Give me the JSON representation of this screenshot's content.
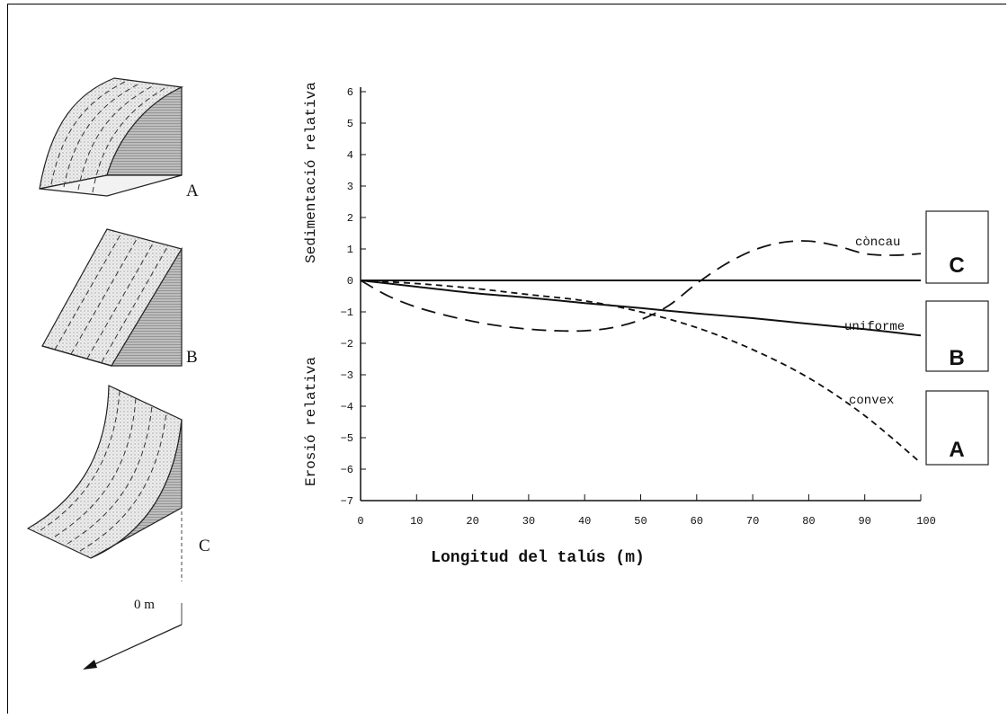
{
  "slopes": {
    "a_label": "A",
    "b_label": "B",
    "c_label": "C",
    "distance_label": "0 m"
  },
  "chart_data": {
    "type": "line",
    "xlabel": "Longitud del talús (m)",
    "ylabel_top": "Sedimentació relativa",
    "ylabel_bottom": "Erosió relativa",
    "xlim": [
      0,
      100
    ],
    "ylim": [
      -7,
      6
    ],
    "xticks": [
      0,
      10,
      20,
      30,
      40,
      50,
      60,
      70,
      80,
      90,
      100
    ],
    "yticks": [
      6,
      5,
      4,
      3,
      2,
      1,
      0,
      -1,
      -2,
      -3,
      -4,
      -5,
      -6,
      -7
    ],
    "zero_line": true,
    "series": [
      {
        "name": "còncau",
        "box_label": "C",
        "style": "long-dash",
        "x": [
          0,
          5,
          10,
          15,
          20,
          25,
          30,
          35,
          40,
          45,
          50,
          55,
          60,
          65,
          70,
          75,
          80,
          85,
          90,
          95,
          100
        ],
        "y": [
          0,
          -0.5,
          -0.85,
          -1.1,
          -1.3,
          -1.45,
          -1.55,
          -1.6,
          -1.6,
          -1.5,
          -1.25,
          -0.8,
          -0.1,
          0.5,
          0.95,
          1.2,
          1.25,
          1.1,
          0.85,
          0.8,
          0.85
        ]
      },
      {
        "name": "uniforme",
        "box_label": "B",
        "style": "solid",
        "x": [
          0,
          10,
          20,
          30,
          40,
          50,
          60,
          70,
          80,
          90,
          100
        ],
        "y": [
          0,
          -0.2,
          -0.4,
          -0.55,
          -0.72,
          -0.88,
          -1.05,
          -1.2,
          -1.38,
          -1.55,
          -1.75
        ]
      },
      {
        "name": "convex",
        "box_label": "A",
        "style": "short-dash",
        "x": [
          0,
          10,
          20,
          30,
          40,
          50,
          60,
          70,
          80,
          90,
          100
        ],
        "y": [
          0,
          -0.1,
          -0.25,
          -0.45,
          -0.65,
          -1.0,
          -1.5,
          -2.2,
          -3.1,
          -4.3,
          -5.8
        ]
      },
      {
        "name": "",
        "style": "solid",
        "x": [
          0,
          100
        ],
        "y": [
          0,
          0
        ]
      }
    ]
  }
}
